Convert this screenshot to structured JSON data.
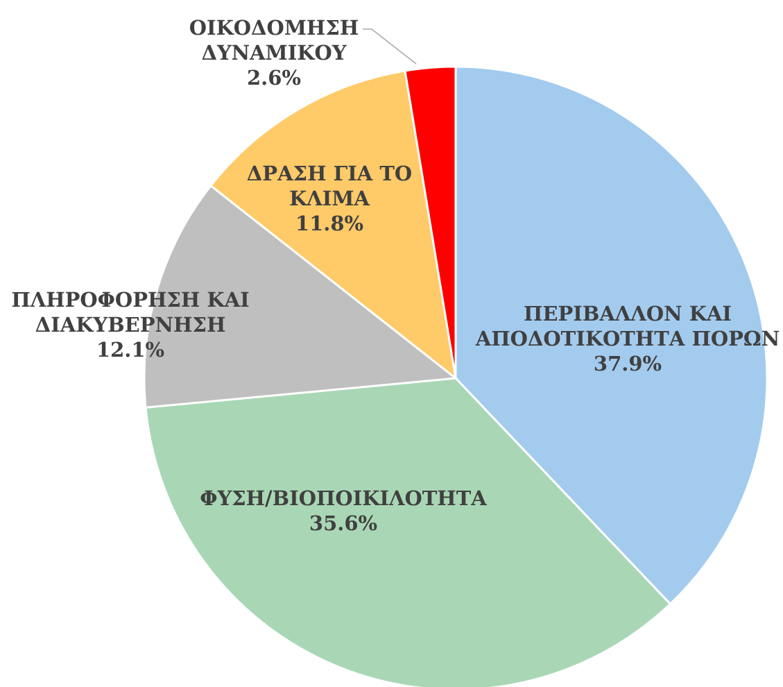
{
  "chart_data": {
    "type": "pie",
    "categories": [
      "ΠΕΡΙΒΑΛΛΟΝ ΚΑΙ\nΑΠΟΔΟΤΙΚΟΤΗΤΑ ΠΟΡΩΝ",
      "ΦΥΣΗ/ΒΙΟΠΟΙΚΙΛΟΤΗΤΑ",
      "ΠΛΗΡΟΦΟΡΗΣΗ ΚΑΙ\nΔΙΑΚΥΒΕΡΝΗΣΗ",
      "ΔΡΑΣΗ ΓΙΑ ΤΟ\nΚΛΙΜΑ",
      "ΟΙΚΟΔΟΜΗΣΗ\nΔΥΝΑΜΙΚΟΥ"
    ],
    "values": [
      37.9,
      35.6,
      12.1,
      11.8,
      2.6
    ],
    "value_labels": [
      "37.9%",
      "35.6%",
      "12.1%",
      "11.8%",
      "2.6%"
    ],
    "colors": [
      "#a3cbee",
      "#a9d7b5",
      "#bfbfbf",
      "#ffca68",
      "#ff0000"
    ]
  }
}
